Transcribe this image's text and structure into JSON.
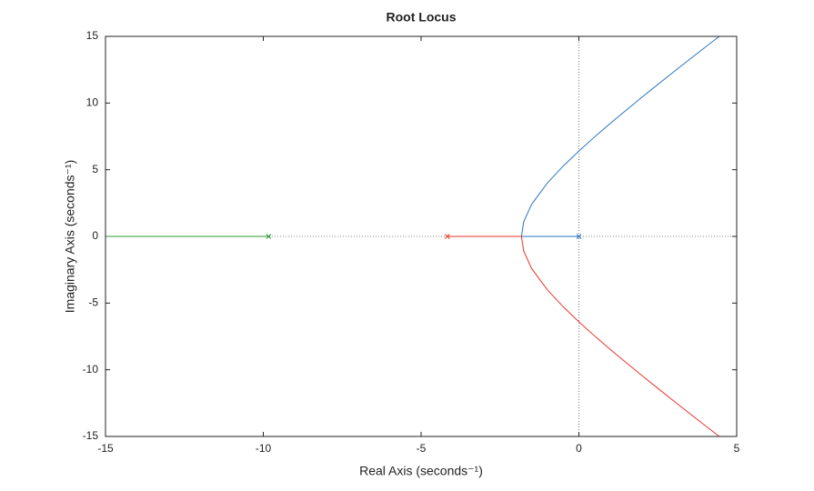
{
  "chart_data": {
    "type": "line",
    "title": "Root Locus",
    "xlabel": "Real Axis (seconds⁻¹)",
    "ylabel": "Imaginary Axis (seconds⁻¹)",
    "xlim": [
      -15,
      5
    ],
    "ylim": [
      -15,
      15
    ],
    "xticks": [
      -15,
      -10,
      -5,
      0,
      5
    ],
    "yticks": [
      -15,
      -10,
      -5,
      0,
      5,
      10,
      15
    ],
    "grid": false,
    "series": [
      {
        "color": "#2a77c0",
        "x": [
          0,
          -1.82,
          -1.75,
          -1.5,
          -1,
          -0.5,
          0,
          0.5,
          1,
          1.5,
          2,
          2.5,
          3,
          3.5,
          4,
          4.45
        ],
        "values": [
          0,
          0,
          1.09,
          2.4,
          4,
          5.27,
          6.4,
          7.47,
          8.49,
          9.47,
          10.44,
          11.39,
          12.33,
          13.26,
          14.18,
          15
        ]
      },
      {
        "color": "#e8352a",
        "x": [
          -4.17,
          -1.82,
          -1.75,
          -1.5,
          -1,
          -0.5,
          0,
          0.5,
          1,
          1.5,
          2,
          2.5,
          3,
          3.5,
          4,
          4.45
        ],
        "values": [
          0,
          0,
          -1.09,
          -2.4,
          -4,
          -5.27,
          -6.4,
          -7.47,
          -8.49,
          -9.47,
          -10.44,
          -11.39,
          -12.33,
          -13.26,
          -14.18,
          -15
        ]
      },
      {
        "color": "#2e9c2e",
        "x": [
          -9.83,
          -15
        ],
        "values": [
          0,
          0
        ]
      }
    ],
    "poles": {
      "x": [
        0,
        -4.17,
        -9.83
      ],
      "y": [
        0,
        0,
        0
      ],
      "colors": [
        "#2a77c0",
        "#e8352a",
        "#2e9c2e"
      ]
    }
  }
}
